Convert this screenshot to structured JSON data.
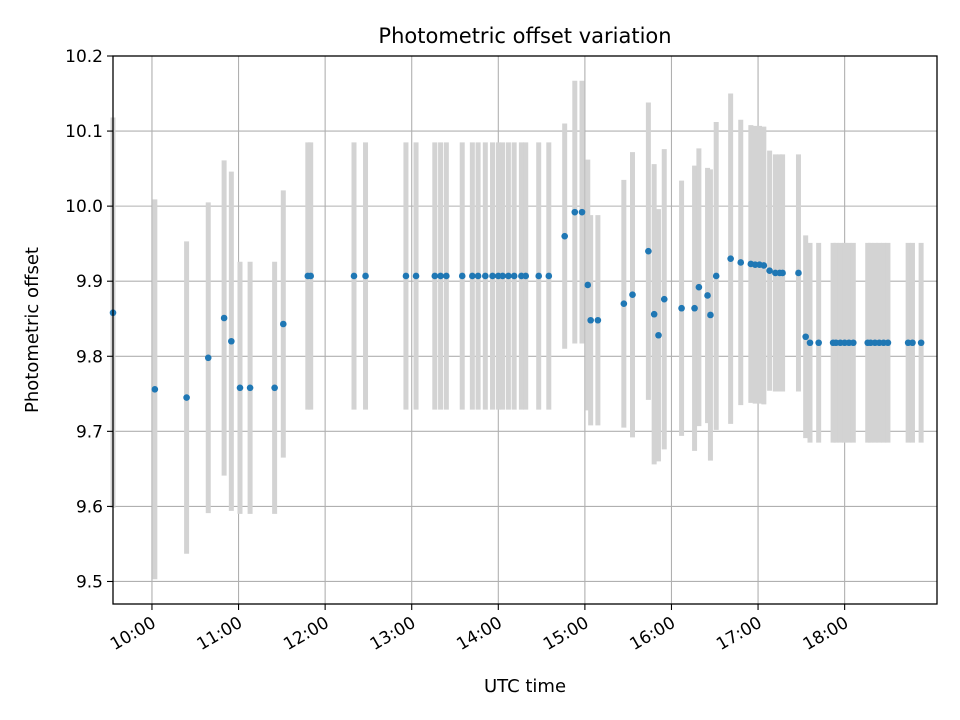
{
  "chart_data": {
    "type": "scatter",
    "title": "Photometric offset variation",
    "xlabel": "UTC time",
    "ylabel": "Photometric offset",
    "xlim": [
      "09:33",
      "19:04"
    ],
    "ylim": [
      9.47,
      10.2
    ],
    "grid": true,
    "x_ticks": [
      "10:00",
      "11:00",
      "12:00",
      "13:00",
      "14:00",
      "15:00",
      "16:00",
      "17:00",
      "18:00"
    ],
    "y_ticks": [
      9.5,
      9.6,
      9.7,
      9.8,
      9.9,
      10.0,
      10.1,
      10.2
    ],
    "y_tick_labels": [
      "9.5",
      "9.6",
      "9.7",
      "9.8",
      "9.9",
      "10.0",
      "10.1",
      "10.2"
    ],
    "marker_color": "#1f77b4",
    "errorbar_color": "#d3d3d3",
    "series": [
      {
        "x": [
          "09:33",
          "10:02",
          "10:24",
          "10:39",
          "10:50",
          "10:55",
          "11:01",
          "11:08",
          "11:25",
          "11:31",
          "11:48",
          "11:50",
          "12:20",
          "12:28",
          "12:56",
          "13:03",
          "13:16",
          "13:20",
          "13:24",
          "13:35",
          "13:42",
          "13:46",
          "13:51",
          "13:56",
          "14:00",
          "14:03",
          "14:07",
          "14:11",
          "14:16",
          "14:19",
          "14:28",
          "14:35",
          "14:46",
          "14:53",
          "14:58",
          "15:02",
          "15:04",
          "15:09",
          "15:27",
          "15:33",
          "15:44",
          "15:48",
          "15:51",
          "15:55",
          "16:07",
          "16:16",
          "16:19",
          "16:25",
          "16:27",
          "16:31",
          "16:41",
          "16:48",
          "16:55",
          "16:58",
          "17:01",
          "17:04",
          "17:08",
          "17:12",
          "17:15",
          "17:17",
          "17:28",
          "17:33",
          "17:36",
          "17:42",
          "17:52",
          "17:54",
          "17:57",
          "18:00",
          "18:03",
          "18:06",
          "18:16",
          "18:18",
          "18:21",
          "18:24",
          "18:27",
          "18:30",
          "18:44",
          "18:47",
          "18:53"
        ],
        "y": [
          9.858,
          9.756,
          9.745,
          9.798,
          9.851,
          9.82,
          9.758,
          9.758,
          9.758,
          9.843,
          9.907,
          9.907,
          9.907,
          9.907,
          9.907,
          9.907,
          9.907,
          9.907,
          9.907,
          9.907,
          9.907,
          9.907,
          9.907,
          9.907,
          9.907,
          9.907,
          9.907,
          9.907,
          9.907,
          9.907,
          9.907,
          9.907,
          9.96,
          9.992,
          9.992,
          9.895,
          9.848,
          9.848,
          9.87,
          9.882,
          9.94,
          9.856,
          9.828,
          9.876,
          9.864,
          9.864,
          9.892,
          9.881,
          9.855,
          9.907,
          9.93,
          9.925,
          9.923,
          9.922,
          9.922,
          9.921,
          9.914,
          9.911,
          9.911,
          9.911,
          9.911,
          9.826,
          9.818,
          9.818,
          9.818,
          9.818,
          9.818,
          9.818,
          9.818,
          9.818,
          9.818,
          9.818,
          9.818,
          9.818,
          9.818,
          9.818,
          9.818,
          9.818,
          9.818
        ],
        "yerr": [
          0.26,
          0.253,
          0.208,
          0.207,
          0.21,
          0.226,
          0.168,
          0.168,
          0.168,
          0.178,
          0.178,
          0.178,
          0.178,
          0.178,
          0.178,
          0.178,
          0.178,
          0.178,
          0.178,
          0.178,
          0.178,
          0.178,
          0.178,
          0.178,
          0.178,
          0.178,
          0.178,
          0.178,
          0.178,
          0.178,
          0.178,
          0.178,
          0.15,
          0.175,
          0.175,
          0.167,
          0.14,
          0.14,
          0.165,
          0.19,
          0.198,
          0.2,
          0.168,
          0.2,
          0.17,
          0.19,
          0.185,
          0.17,
          0.194,
          0.205,
          0.22,
          0.19,
          0.185,
          0.185,
          0.185,
          0.185,
          0.16,
          0.158,
          0.158,
          0.158,
          0.158,
          0.135,
          0.133,
          0.133,
          0.133,
          0.133,
          0.133,
          0.133,
          0.133,
          0.133,
          0.133,
          0.133,
          0.133,
          0.133,
          0.133,
          0.133,
          0.133,
          0.133,
          0.133
        ]
      }
    ]
  }
}
